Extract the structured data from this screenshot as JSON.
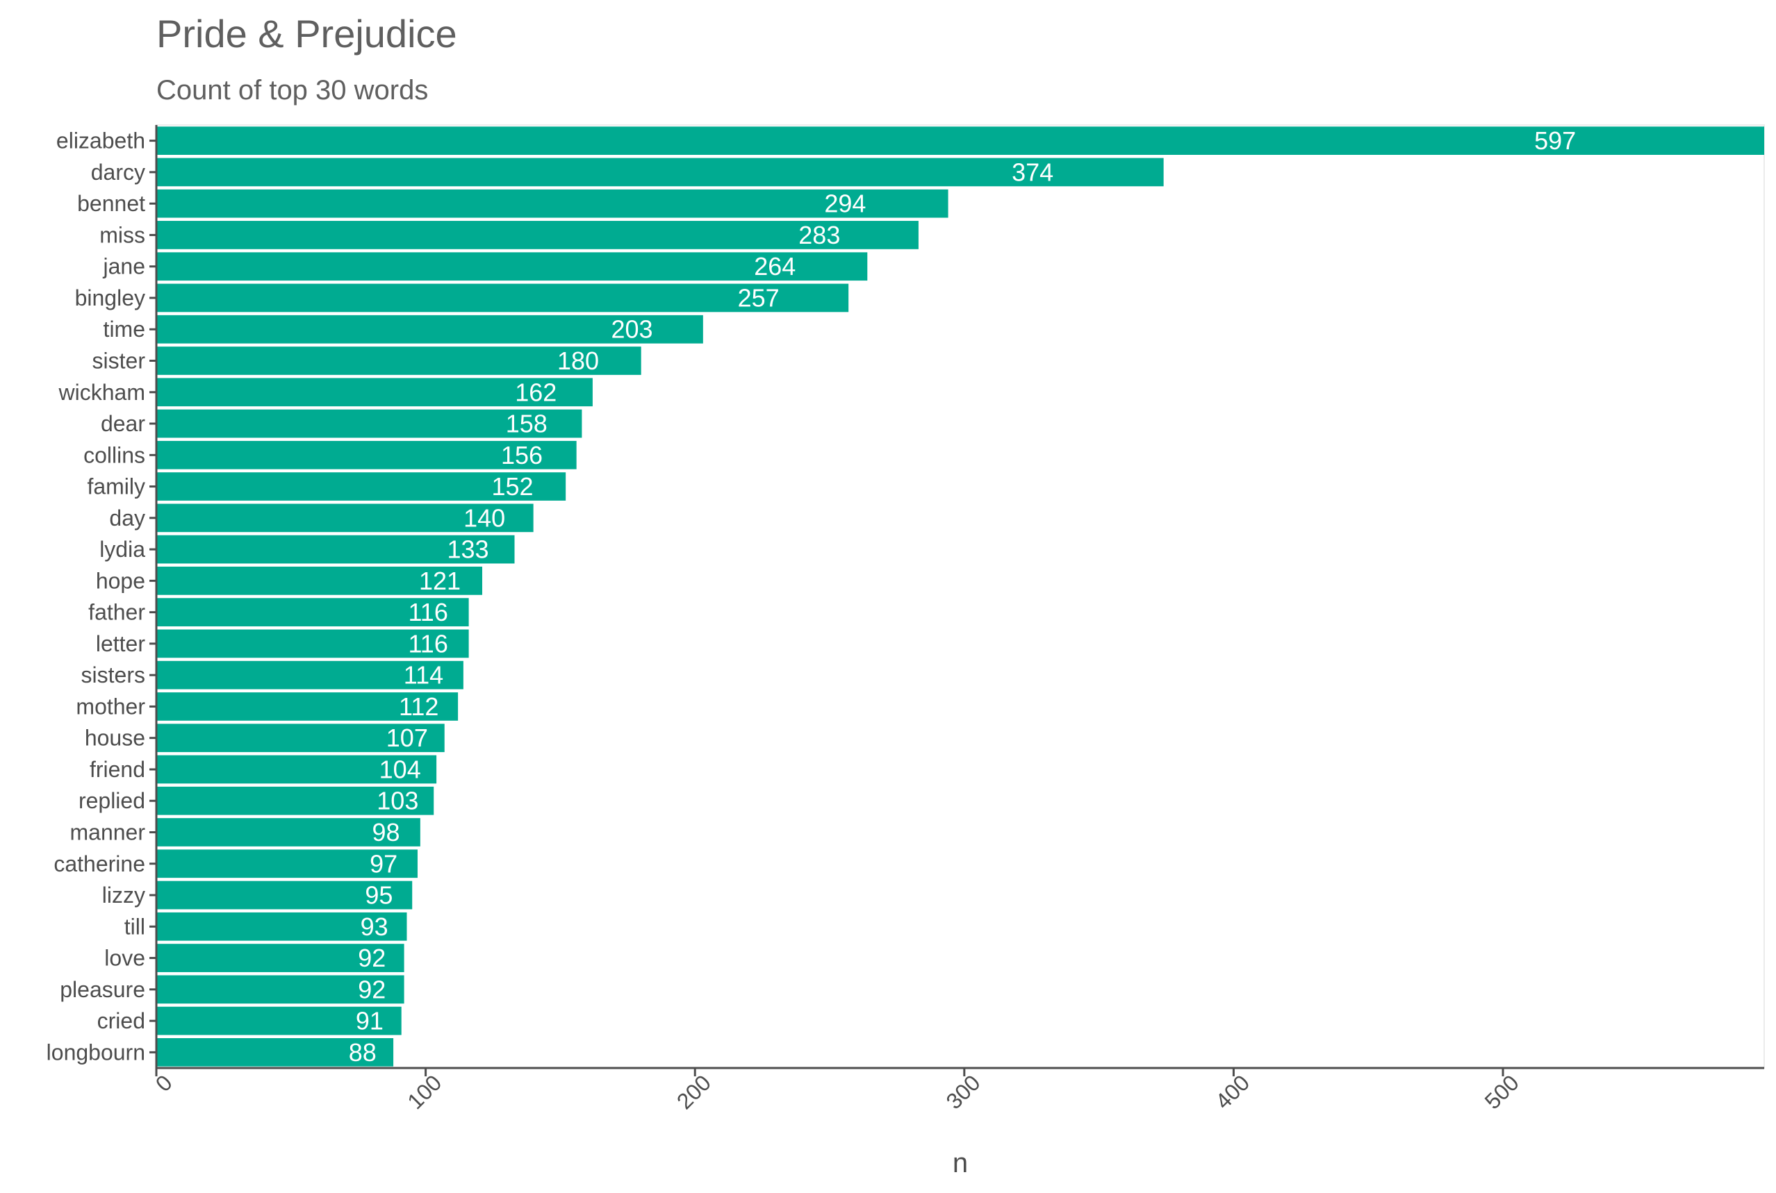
{
  "chart_data": {
    "type": "bar",
    "orientation": "horizontal",
    "title": "Pride & Prejudice",
    "subtitle": "Count of top 30 words",
    "xlabel": "n",
    "ylabel": "",
    "xlim": [
      0,
      597
    ],
    "x_ticks": [
      0,
      100,
      200,
      300,
      400,
      500
    ],
    "grid": false,
    "bar_color": "#00ab91",
    "categories": [
      "elizabeth",
      "darcy",
      "bennet",
      "miss",
      "jane",
      "bingley",
      "time",
      "sister",
      "wickham",
      "dear",
      "collins",
      "family",
      "day",
      "lydia",
      "hope",
      "father",
      "letter",
      "sisters",
      "mother",
      "house",
      "friend",
      "replied",
      "manner",
      "catherine",
      "lizzy",
      "till",
      "love",
      "pleasure",
      "cried",
      "longbourn"
    ],
    "values": [
      597,
      374,
      294,
      283,
      264,
      257,
      203,
      180,
      162,
      158,
      156,
      152,
      140,
      133,
      121,
      116,
      116,
      114,
      112,
      107,
      104,
      103,
      98,
      97,
      95,
      93,
      92,
      92,
      91,
      88
    ]
  }
}
